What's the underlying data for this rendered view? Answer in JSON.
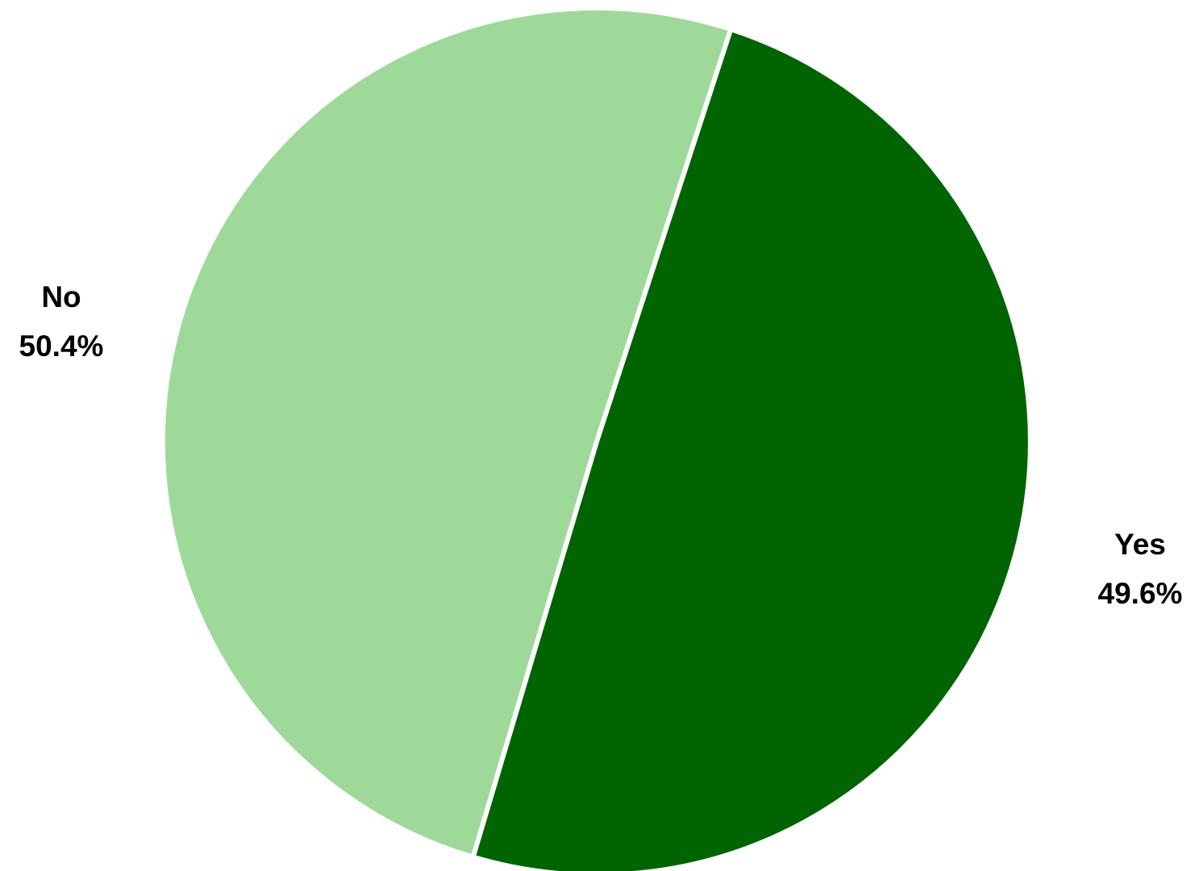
{
  "chart_data": {
    "type": "pie",
    "slices": [
      {
        "label": "Yes",
        "value": 49.6,
        "value_label": "49.6%",
        "color": "#006400"
      },
      {
        "label": "No",
        "value": 50.4,
        "value_label": "50.4%",
        "color": "#9ed99a"
      }
    ],
    "start_angle_deg": 18,
    "direction": "clockwise",
    "legend": "none",
    "data_labels": "outside"
  }
}
